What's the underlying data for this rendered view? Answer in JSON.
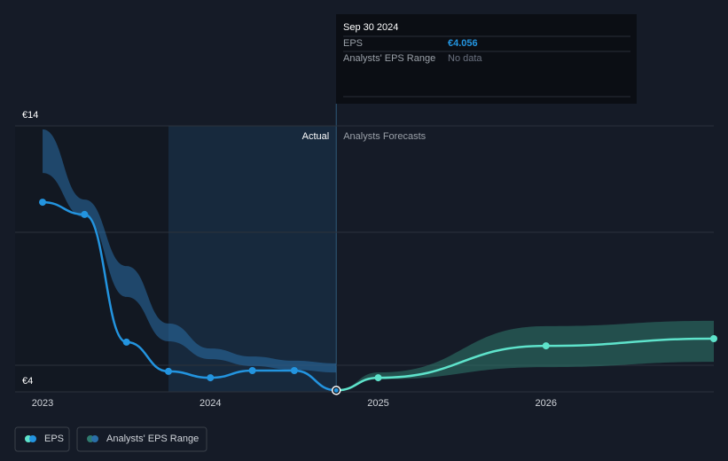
{
  "chart_data": {
    "type": "line",
    "xlim": [
      2022.836,
      2027.0
    ],
    "xticks": [
      2023,
      2024,
      2025,
      2026
    ],
    "ylim": [
      4,
      14
    ],
    "yticks": [
      {
        "value": 4,
        "label": "€4"
      },
      {
        "value": 5,
        "label": null
      },
      {
        "value": 10,
        "label": null
      },
      {
        "value": 14,
        "label": "€14"
      }
    ],
    "annotations": {
      "actual": "Actual",
      "forecast": "Analysts Forecasts"
    },
    "x": [
      2023.0,
      2023.25,
      2023.5,
      2023.75,
      2024.0,
      2024.25,
      2024.5,
      2024.75
    ],
    "forecast_x": [
      2024.75,
      2025.0,
      2026.0,
      2027.0
    ],
    "series": [
      {
        "name": "EPS",
        "color": "#2394df",
        "forecast_color": "#5ee3cb",
        "values": [
          11.13,
          10.67,
          5.87,
          4.77,
          4.53,
          4.8,
          4.8,
          4.056
        ],
        "forecast_values": [
          4.056,
          4.53,
          5.73,
          6.0
        ]
      },
      {
        "name": "Analysts' EPS Range",
        "color": "#2a6fa8",
        "forecast_color": "#2f7a6e",
        "high": [
          13.87,
          11.23,
          8.73,
          6.57,
          5.63,
          5.33,
          5.17,
          5.07
        ],
        "low": [
          12.23,
          10.57,
          7.57,
          5.9,
          5.23,
          4.97,
          4.83,
          4.73
        ],
        "forecast_high": [
          4.056,
          4.73,
          6.47,
          6.67
        ],
        "forecast_low": [
          4.056,
          4.47,
          4.93,
          5.13
        ]
      }
    ],
    "tooltip": {
      "date": "Sep 30 2024",
      "eps_label": "EPS",
      "eps_value": 4.056,
      "eps_value_label": "€4.056",
      "range_label": "Analysts' EPS Range",
      "range_value": "No data"
    }
  }
}
